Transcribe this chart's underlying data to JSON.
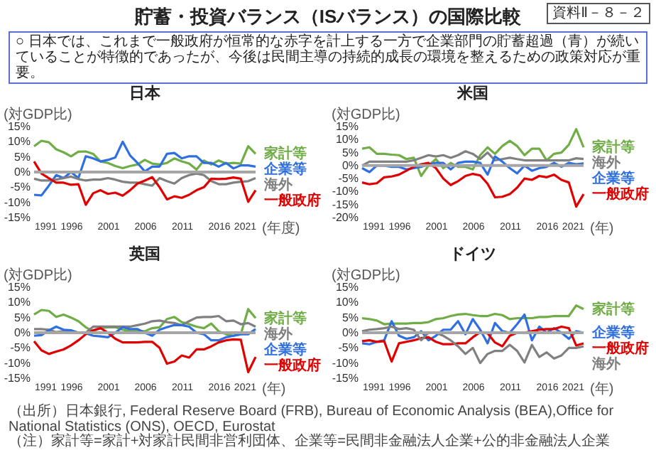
{
  "chart_data": [
    {
      "type": "other",
      "title": "貯蓄・投資バランス（ISバランス）の国際比較",
      "annotations": [
        "資料Ⅱ－８－２",
        "○ 日本では、これまで一般政府が恒常的な赤字を計上する一方で企業部門の貯蓄超過（青）が続いていることが特徴的であったが、今後は民間主導の持続的成長の環境を整えるための政策対応が重要。",
        "（出所）日本銀行, Federal Reserve Board (FRB), Bureau of Economic Analysis (BEA),Office for National Statistics (ONS), OECD, Eurostat",
        "（注）家計等=家計+対家計民間非営利団体、企業等=民間非金融法人企業+公的非金融法人企業"
      ]
    },
    {
      "type": "line",
      "title": "日本",
      "xlabel": "(年度)",
      "ylabel": "(対GDP比)",
      "x": [
        1991,
        1992,
        1993,
        1994,
        1995,
        1996,
        1997,
        1998,
        1999,
        2000,
        2001,
        2002,
        2003,
        2004,
        2005,
        2006,
        2007,
        2008,
        2009,
        2010,
        2011,
        2012,
        2013,
        2014,
        2015,
        2016,
        2017,
        2018,
        2019,
        2020,
        2021
      ],
      "xlim": [
        1991,
        2021
      ],
      "xticks": [
        1991,
        1996,
        2001,
        2006,
        2011,
        2016,
        2021
      ],
      "ylim": [
        -15,
        15
      ],
      "yticks": [
        {
          "value": -15,
          "label": "-15%"
        },
        {
          "value": -10,
          "label": "-10%"
        },
        {
          "value": -5,
          "label": "-5%"
        },
        {
          "value": 0,
          "label": "0%"
        },
        {
          "value": 5,
          "label": "5%"
        },
        {
          "value": 10,
          "label": "10%"
        },
        {
          "value": 15,
          "label": "15%"
        }
      ],
      "ref_lines": [
        {
          "axis": "y",
          "value": 0,
          "color": "#a6a6a6"
        }
      ],
      "series": [
        {
          "name": "家計等",
          "color": "#70ad47",
          "values": [
            8.5,
            10.3,
            9.8,
            7.5,
            6.5,
            5.2,
            6.7,
            6.8,
            6.0,
            3.5,
            3.0,
            2.0,
            1.3,
            2.0,
            2.5,
            4.0,
            2.8,
            2.5,
            3.0,
            4.5,
            3.5,
            2.8,
            0.8,
            3.8,
            2.5,
            3.8,
            2.8,
            3.0,
            2.8,
            8.5,
            6.0
          ]
        },
        {
          "name": "企業等",
          "color": "#2f6fe0",
          "values": [
            -7.5,
            -7.7,
            -4.5,
            -1.0,
            -2.0,
            0,
            -2.0,
            5.2,
            4.5,
            3.5,
            4.0,
            4.8,
            10.0,
            5.5,
            3.0,
            0.2,
            1.8,
            1.8,
            6.0,
            6.3,
            4.5,
            5.2,
            5.2,
            3.0,
            3.0,
            1.8,
            3.0,
            1.2,
            2.2,
            2.2,
            1.8
          ]
        },
        {
          "name": "海外",
          "color": "#808080",
          "values": [
            -2.2,
            -2.8,
            -2.8,
            -2.5,
            -2.0,
            -1.5,
            -2.3,
            -2.8,
            -2.5,
            -2.5,
            -2.0,
            -2.5,
            -3.2,
            -3.5,
            -3.5,
            -4.0,
            -4.5,
            -2.0,
            -3.0,
            -3.8,
            -2.0,
            -1.0,
            -0.5,
            -1.0,
            -3.0,
            -4.0,
            -4.0,
            -3.5,
            -3.2,
            -3.0,
            -2.0
          ]
        },
        {
          "name": "一般政府",
          "color": "#e00000",
          "values": [
            3.5,
            -0.5,
            -2.0,
            -3.5,
            -3.5,
            -4.2,
            -4.0,
            -10.8,
            -7.0,
            -6.0,
            -7.2,
            -6.8,
            -7.8,
            -6.0,
            -3.8,
            -2.8,
            -1.7,
            -5.0,
            -9.0,
            -8.0,
            -8.5,
            -7.5,
            -6.0,
            -5.0,
            -2.2,
            -2.3,
            -2.2,
            -1.8,
            -2.2,
            -9.8,
            -6.0
          ]
        }
      ]
    },
    {
      "type": "line",
      "title": "米国",
      "xlabel": "(年)",
      "ylabel": "(対GDP比)",
      "x": [
        1991,
        1992,
        1993,
        1994,
        1995,
        1996,
        1997,
        1998,
        1999,
        2000,
        2001,
        2002,
        2003,
        2004,
        2005,
        2006,
        2007,
        2008,
        2009,
        2010,
        2011,
        2012,
        2013,
        2014,
        2015,
        2016,
        2017,
        2018,
        2019,
        2020,
        2021
      ],
      "xlim": [
        1991,
        2021
      ],
      "xticks": [
        1991,
        1996,
        2001,
        2006,
        2011,
        2016,
        2021
      ],
      "ylim": [
        -20,
        15
      ],
      "yticks": [
        {
          "value": -20,
          "label": "-20%"
        },
        {
          "value": -15,
          "label": "-15%"
        },
        {
          "value": -10,
          "label": "-10%"
        },
        {
          "value": -5,
          "label": "-5%"
        },
        {
          "value": 0,
          "label": "0%"
        },
        {
          "value": 5,
          "label": "5%"
        },
        {
          "value": 10,
          "label": "10%"
        },
        {
          "value": 15,
          "label": "15%"
        }
      ],
      "ref_lines": [
        {
          "axis": "y",
          "value": 0,
          "color": "#a6a6a6"
        }
      ],
      "series": [
        {
          "name": "家計等",
          "color": "#70ad47",
          "values": [
            6.5,
            7.0,
            4.5,
            4.5,
            4.2,
            4.0,
            2.5,
            3.0,
            -4.0,
            0,
            2.5,
            -1.0,
            1.0,
            -0.5,
            -0.5,
            -1.5,
            4.0,
            7.0,
            4.5,
            7.5,
            9.5,
            7.5,
            4.0,
            6.5,
            6.5,
            2.0,
            4.5,
            5.0,
            8.0,
            14.0,
            7.0
          ]
        },
        {
          "name": "海外",
          "color": "#808080",
          "values": [
            0,
            1.5,
            1.5,
            1.5,
            1.5,
            1.5,
            1.5,
            2.0,
            3.0,
            4.0,
            3.5,
            4.0,
            3.0,
            4.0,
            5.5,
            4.5,
            2.5,
            5.0,
            2.0,
            2.5,
            3.0,
            2.5,
            2.0,
            2.0,
            2.0,
            2.0,
            2.0,
            2.0,
            2.0,
            2.8,
            2.5
          ]
        },
        {
          "name": "企業等",
          "color": "#2f6fe0",
          "values": [
            -1.0,
            -2.5,
            0,
            0,
            -0.5,
            -0.5,
            -1.5,
            -1.0,
            -0.5,
            0.5,
            1.0,
            1.0,
            -1.5,
            1.0,
            1.5,
            1.5,
            1.0,
            -3.5,
            3.5,
            1.5,
            -1.0,
            -3.0,
            0,
            -2.0,
            -1.0,
            -0.5,
            1.0,
            -0.5,
            1.0,
            0.5,
            0.8
          ]
        },
        {
          "name": "一般政府",
          "color": "#e00000",
          "values": [
            -6.5,
            -7.2,
            -6.8,
            -4.5,
            -4.2,
            -3.5,
            -2.0,
            -0.5,
            0.5,
            1.0,
            -1.0,
            -5.0,
            -7.5,
            -6.0,
            -4.0,
            -3.2,
            -3.8,
            -7.0,
            -12.2,
            -12.0,
            -11.0,
            -8.5,
            -5.0,
            -5.5,
            -4.0,
            -4.5,
            -3.5,
            -5.5,
            -6.5,
            -15.8,
            -11.0
          ]
        }
      ]
    },
    {
      "type": "line",
      "title": "英国",
      "xlabel": "(年)",
      "ylabel": "(対GDP比)",
      "x": [
        1991,
        1992,
        1993,
        1994,
        1995,
        1996,
        1997,
        1998,
        1999,
        2000,
        2001,
        2002,
        2003,
        2004,
        2005,
        2006,
        2007,
        2008,
        2009,
        2010,
        2011,
        2012,
        2013,
        2014,
        2015,
        2016,
        2017,
        2018,
        2019,
        2020,
        2021
      ],
      "xlim": [
        1991,
        2021
      ],
      "xticks": [
        1991,
        1996,
        2001,
        2006,
        2011,
        2016,
        2021
      ],
      "ylim": [
        -15,
        15
      ],
      "yticks": [
        {
          "value": -15,
          "label": "-15%"
        },
        {
          "value": -10,
          "label": "-10%"
        },
        {
          "value": -5,
          "label": "-5%"
        },
        {
          "value": 0,
          "label": "0%"
        },
        {
          "value": 5,
          "label": "5%"
        },
        {
          "value": 10,
          "label": "10%"
        },
        {
          "value": 15,
          "label": "15%"
        }
      ],
      "ref_lines": [
        {
          "axis": "y",
          "value": 0,
          "color": "#a6a6a6"
        }
      ],
      "series": [
        {
          "name": "家計等",
          "color": "#70ad47",
          "values": [
            6.0,
            7.5,
            7.2,
            5.2,
            6.0,
            5.0,
            3.8,
            1.8,
            0.5,
            1.5,
            1.8,
            1.8,
            1.0,
            0.5,
            0.5,
            0.5,
            1.5,
            1.8,
            4.5,
            5.2,
            3.5,
            2.8,
            2.0,
            1.5,
            3.0,
            0.5,
            -0.5,
            -1.0,
            -0.5,
            7.8,
            4.8
          ]
        },
        {
          "name": "海外",
          "color": "#808080",
          "values": [
            1.2,
            1.2,
            1.0,
            0.2,
            0.5,
            0.5,
            0,
            0,
            2.0,
            2.0,
            2.0,
            2.0,
            2.0,
            2.0,
            2.5,
            3.0,
            3.8,
            4.0,
            3.5,
            3.2,
            2.5,
            3.8,
            5.0,
            5.2,
            5.2,
            5.5,
            3.8,
            4.0,
            2.8,
            3.2,
            2.0
          ]
        },
        {
          "name": "企業等",
          "color": "#2f6fe0",
          "values": [
            -1.0,
            -0.8,
            0.8,
            2.0,
            1.0,
            0.8,
            0,
            -0.2,
            -1.0,
            -1.2,
            -1.5,
            0,
            1.8,
            1.2,
            1.2,
            0,
            -1.0,
            1.0,
            1.8,
            2.5,
            2.5,
            2.0,
            0,
            -0.5,
            -2.5,
            -2.5,
            -1.5,
            -1.0,
            -0.5,
            -0.5,
            1.2
          ]
        },
        {
          "name": "一般政府",
          "color": "#e00000",
          "values": [
            -2.8,
            -5.8,
            -7.0,
            -6.2,
            -5.5,
            -4.2,
            -2.5,
            -0.5,
            0.8,
            1.5,
            0,
            -2.0,
            -3.2,
            -3.2,
            -3.2,
            -3.0,
            -3.0,
            -5.0,
            -10.2,
            -9.5,
            -7.5,
            -8.2,
            -5.5,
            -5.5,
            -4.5,
            -3.2,
            -2.5,
            -2.2,
            -2.3,
            -13.0,
            -8.0
          ]
        }
      ]
    },
    {
      "type": "line",
      "title": "ドイツ",
      "xlabel": "(年)",
      "ylabel": "(対GDP比)",
      "x": [
        1991,
        1992,
        1993,
        1994,
        1995,
        1996,
        1997,
        1998,
        1999,
        2000,
        2001,
        2002,
        2003,
        2004,
        2005,
        2006,
        2007,
        2008,
        2009,
        2010,
        2011,
        2012,
        2013,
        2014,
        2015,
        2016,
        2017,
        2018,
        2019,
        2020,
        2021
      ],
      "xlim": [
        1991,
        2021
      ],
      "xticks": [
        1991,
        1996,
        2001,
        2006,
        2011,
        2016,
        2021
      ],
      "ylim": [
        -15,
        15
      ],
      "yticks": [
        {
          "value": -15,
          "label": "-15%"
        },
        {
          "value": -10,
          "label": "-10%"
        },
        {
          "value": -5,
          "label": "-5%"
        },
        {
          "value": 0,
          "label": "0%"
        },
        {
          "value": 5,
          "label": "5%"
        },
        {
          "value": 10,
          "label": "10%"
        },
        {
          "value": 15,
          "label": "15%"
        }
      ],
      "ref_lines": [
        {
          "axis": "y",
          "value": 0,
          "color": "#a6a6a6"
        }
      ],
      "series": [
        {
          "name": "家計等",
          "color": "#70ad47",
          "values": [
            4.8,
            4.5,
            4.0,
            2.8,
            3.0,
            3.0,
            3.0,
            3.2,
            3.2,
            3.5,
            4.5,
            4.8,
            5.5,
            6.0,
            6.2,
            5.8,
            5.5,
            5.5,
            6.2,
            5.8,
            4.5,
            4.8,
            4.8,
            4.8,
            5.2,
            5.2,
            5.5,
            5.5,
            5.5,
            9.0,
            7.8
          ]
        },
        {
          "name": "企業等",
          "color": "#2f6fe0",
          "values": [
            -3.5,
            -3.8,
            -3.0,
            -2.5,
            3.8,
            -1.0,
            -2.0,
            -1.5,
            0.5,
            -2.5,
            -1.0,
            1.0,
            1.0,
            3.8,
            -0.5,
            4.5,
            1.0,
            -3.5,
            3.2,
            0.5,
            0,
            2.8,
            6.0,
            -2.5,
            2.0,
            0,
            1.5,
            0,
            -2.0,
            0.5,
            0
          ]
        },
        {
          "name": "一般政府",
          "color": "#e00000",
          "values": [
            -2.8,
            -2.5,
            -3.0,
            -2.8,
            -9.5,
            -3.5,
            -3.0,
            -2.5,
            -1.8,
            -1.5,
            -3.0,
            -3.8,
            -3.8,
            -3.5,
            -3.5,
            -1.5,
            0.2,
            -0.2,
            -3.2,
            -4.5,
            -1.0,
            0,
            0,
            0.5,
            1.0,
            1.2,
            1.2,
            2.0,
            1.5,
            -4.2,
            -3.5
          ]
        },
        {
          "name": "海外",
          "color": "#808080",
          "values": [
            0.5,
            1.0,
            1.2,
            1.5,
            2.0,
            1.2,
            1.5,
            1.0,
            -2.5,
            0,
            0,
            -1.0,
            -2.5,
            -4.5,
            -7.0,
            -5.0,
            -10.0,
            -7.0,
            -6.0,
            -6.0,
            -4.0,
            -6.0,
            -9.8,
            -4.0,
            -8.0,
            -6.5,
            -8.5,
            -7.5,
            -5.0,
            -5.0,
            -4.5
          ]
        }
      ]
    }
  ]
}
